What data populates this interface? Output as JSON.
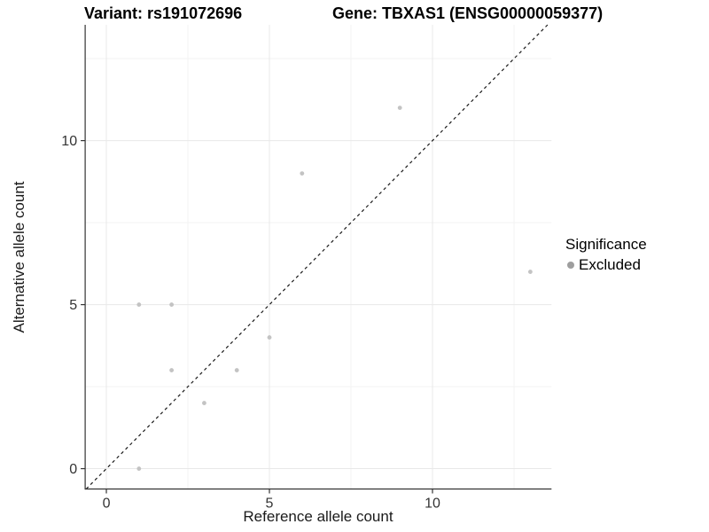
{
  "chart_data": {
    "type": "scatter",
    "title_left": "Variant: rs191072696",
    "title_right": "Gene: TBXAS1 (ENSG00000059377)",
    "xlabel": "Reference allele count",
    "ylabel": "Alternative allele count",
    "x_ticks": [
      0,
      5,
      10
    ],
    "y_ticks": [
      0,
      5,
      10
    ],
    "x_minor_ticks": [
      2.5,
      7.5,
      12.5
    ],
    "y_minor_ticks": [
      2.5,
      7.5,
      12.5
    ],
    "xlim": [
      -0.65,
      13.65
    ],
    "ylim": [
      -0.62,
      13.53
    ],
    "points": [
      {
        "x": 1,
        "y": 0
      },
      {
        "x": 1,
        "y": 5
      },
      {
        "x": 2,
        "y": 3
      },
      {
        "x": 2,
        "y": 5
      },
      {
        "x": 3,
        "y": 2
      },
      {
        "x": 4,
        "y": 3
      },
      {
        "x": 5,
        "y": 4
      },
      {
        "x": 6,
        "y": 9
      },
      {
        "x": 9,
        "y": 11
      },
      {
        "x": 13,
        "y": 6
      }
    ],
    "identity_line": true,
    "grid": true,
    "colors": {
      "point": "#c3c3c3",
      "legend_point": "#9e9e9e",
      "grid_major": "#e8e8e8",
      "grid_minor": "#f3f3f3",
      "axis_line": "#333333",
      "identity_line": "#1a1a1a"
    },
    "legend": {
      "title": "Significance",
      "position": "right",
      "items": [
        {
          "label": "Excluded",
          "color": "#9e9e9e"
        }
      ]
    }
  }
}
